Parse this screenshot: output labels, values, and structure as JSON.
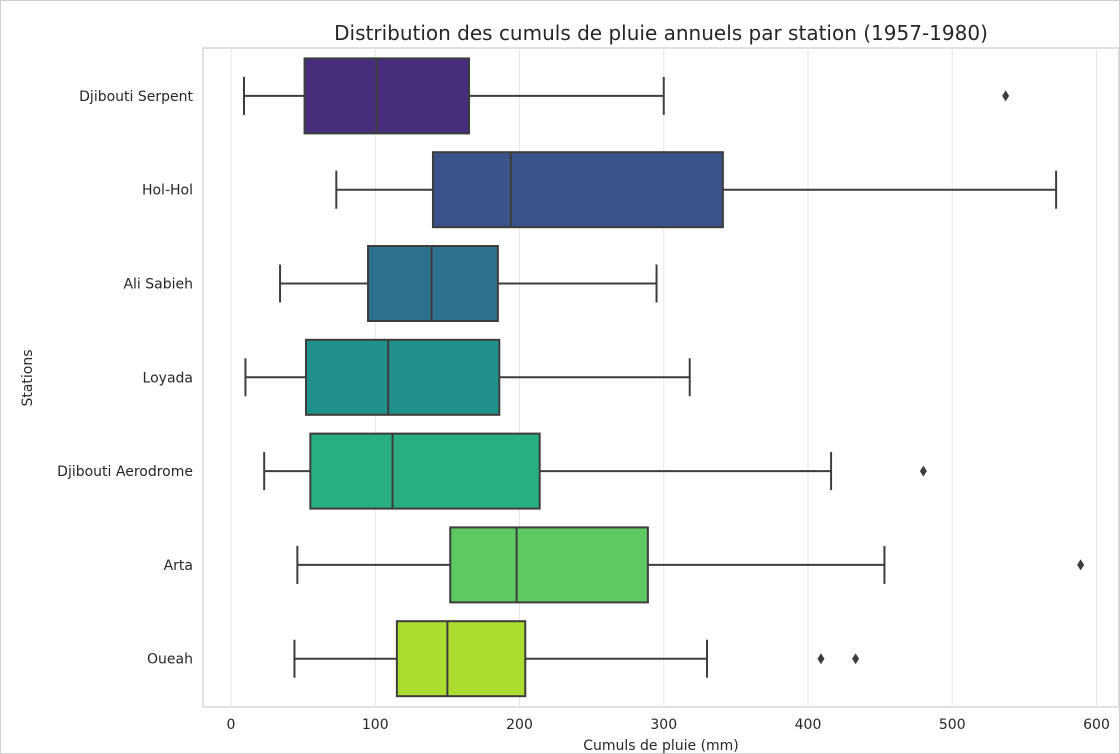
{
  "chart_data": {
    "type": "boxplot",
    "orientation": "horizontal",
    "title": "Distribution des cumuls de pluie annuels par station (1957-1980)",
    "xlabel": "Cumuls de pluie (mm)",
    "ylabel": "Stations",
    "xlim": [
      -20,
      600
    ],
    "xticks": [
      0,
      100,
      200,
      300,
      400,
      500,
      600
    ],
    "grid": "vertical",
    "series": [
      {
        "name": "Djibouti Serpent",
        "whisker_low": 9,
        "q1": 51,
        "median": 101,
        "q3": 165,
        "whisker_high": 300,
        "outliers": [
          537
        ],
        "color": "#472d7b"
      },
      {
        "name": "Hol-Hol",
        "whisker_low": 73,
        "q1": 140,
        "median": 194,
        "q3": 341,
        "whisker_high": 572,
        "outliers": [],
        "color": "#3b528b"
      },
      {
        "name": "Ali Sabieh",
        "whisker_low": 34,
        "q1": 95,
        "median": 139,
        "q3": 185,
        "whisker_high": 295,
        "outliers": [],
        "color": "#2c728e"
      },
      {
        "name": "Loyada",
        "whisker_low": 10,
        "q1": 52,
        "median": 109,
        "q3": 186,
        "whisker_high": 318,
        "outliers": [],
        "color": "#21918c"
      },
      {
        "name": "Djibouti Aerodrome",
        "whisker_low": 23,
        "q1": 55,
        "median": 112,
        "q3": 214,
        "whisker_high": 416,
        "outliers": [
          480
        ],
        "color": "#28ae80"
      },
      {
        "name": "Arta",
        "whisker_low": 46,
        "q1": 152,
        "median": 198,
        "q3": 289,
        "whisker_high": 453,
        "outliers": [
          589
        ],
        "color": "#5ec962"
      },
      {
        "name": "Oueah",
        "whisker_low": 44,
        "q1": 115,
        "median": 150,
        "q3": 204,
        "whisker_high": 330,
        "outliers": [
          409,
          433
        ],
        "color": "#addc30"
      }
    ]
  }
}
